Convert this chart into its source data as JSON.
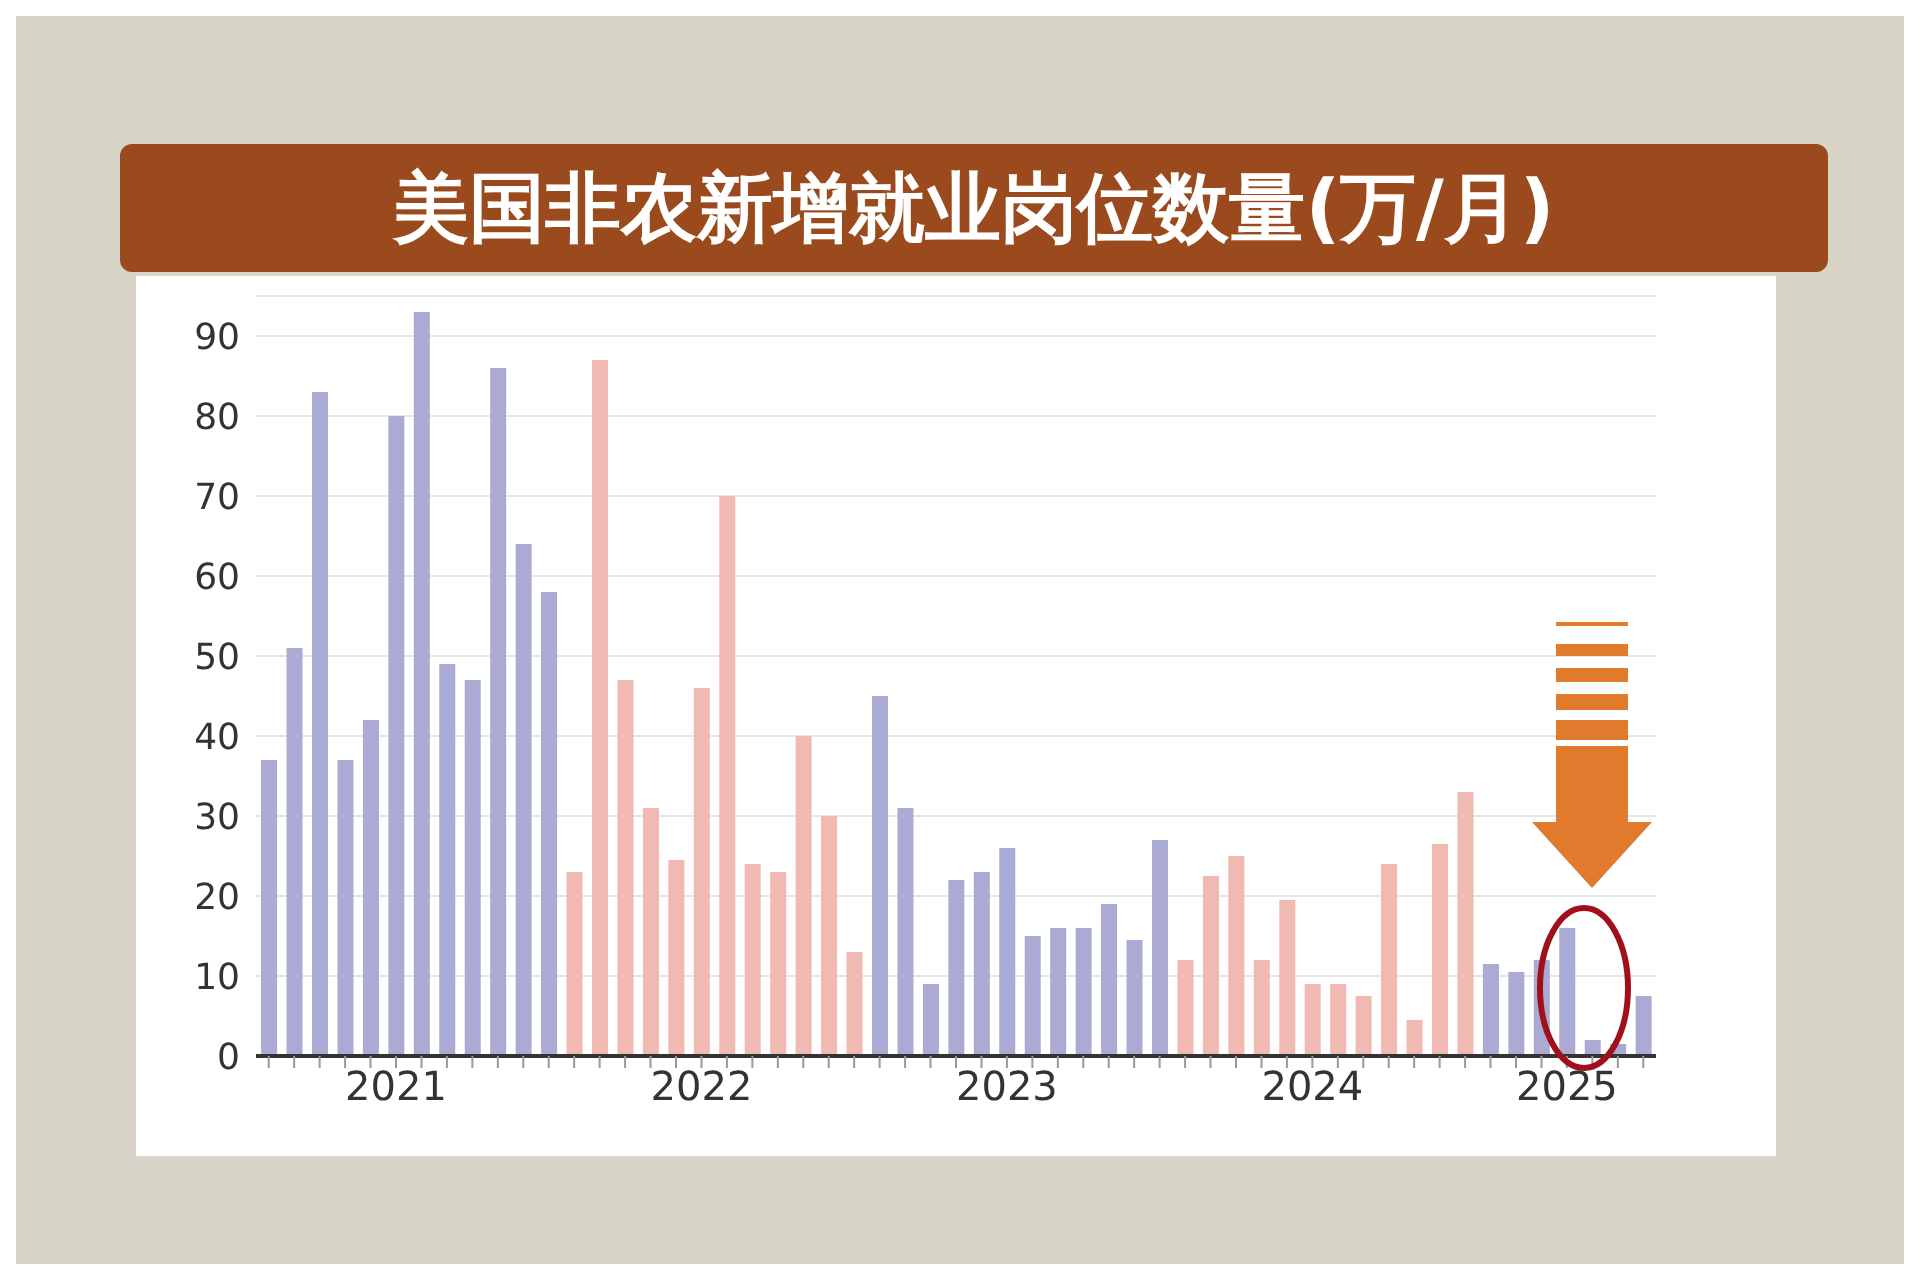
{
  "chart_data": {
    "type": "bar",
    "title": "美国非农新增就业岗位数量(万/月)",
    "categories": [
      null,
      null,
      null,
      null,
      null,
      "2021",
      null,
      null,
      null,
      null,
      null,
      null,
      null,
      null,
      null,
      null,
      null,
      "2022",
      null,
      null,
      null,
      null,
      null,
      null,
      null,
      null,
      null,
      null,
      null,
      "2023",
      null,
      null,
      null,
      null,
      null,
      null,
      null,
      null,
      null,
      null,
      null,
      "2024",
      null,
      null,
      null,
      null,
      null,
      null,
      null,
      null,
      null,
      "2025",
      null,
      null,
      null
    ],
    "values": [
      37,
      51,
      83,
      37,
      42,
      80,
      93,
      49,
      47,
      86,
      64,
      58,
      23,
      87,
      47,
      31,
      24.5,
      46,
      70,
      24,
      23,
      40,
      30,
      13,
      45,
      31,
      9,
      22,
      23,
      26,
      15,
      16,
      16,
      19,
      14.5,
      27,
      12,
      22.5,
      25,
      12,
      19.5,
      9,
      9,
      7.5,
      24,
      4.5,
      26.5,
      33,
      11.5,
      10.5,
      12,
      16,
      2,
      1.5,
      7.5
    ],
    "colors": [
      "#aaaad4",
      "#aaaad4",
      "#aaaad4",
      "#aaaad4",
      "#aaaad4",
      "#aaaad4",
      "#aaaad4",
      "#aaaad4",
      "#aaaad4",
      "#aaaad4",
      "#aaaad4",
      "#aaaad4",
      "#f0b9b1",
      "#f0b9b1",
      "#f0b9b1",
      "#f0b9b1",
      "#f0b9b1",
      "#f0b9b1",
      "#f0b9b1",
      "#f0b9b1",
      "#f0b9b1",
      "#f0b9b1",
      "#f0b9b1",
      "#f0b9b1",
      "#aaaad4",
      "#aaaad4",
      "#aaaad4",
      "#aaaad4",
      "#aaaad4",
      "#aaaad4",
      "#aaaad4",
      "#aaaad4",
      "#aaaad4",
      "#aaaad4",
      "#aaaad4",
      "#aaaad4",
      "#f0b9b1",
      "#f0b9b1",
      "#f0b9b1",
      "#f0b9b1",
      "#f0b9b1",
      "#f0b9b1",
      "#f0b9b1",
      "#f0b9b1",
      "#f0b9b1",
      "#f0b9b1",
      "#f0b9b1",
      "#f0b9b1",
      "#aaaad4",
      "#aaaad4",
      "#aaaad4",
      "#aaaad4",
      "#aaaad4",
      "#aaaad4",
      "#aaaad4"
    ],
    "ylim": [
      0,
      95
    ],
    "yticks": [
      0,
      10,
      20,
      30,
      40,
      50,
      60,
      70,
      80,
      90
    ],
    "grid": "y"
  }
}
